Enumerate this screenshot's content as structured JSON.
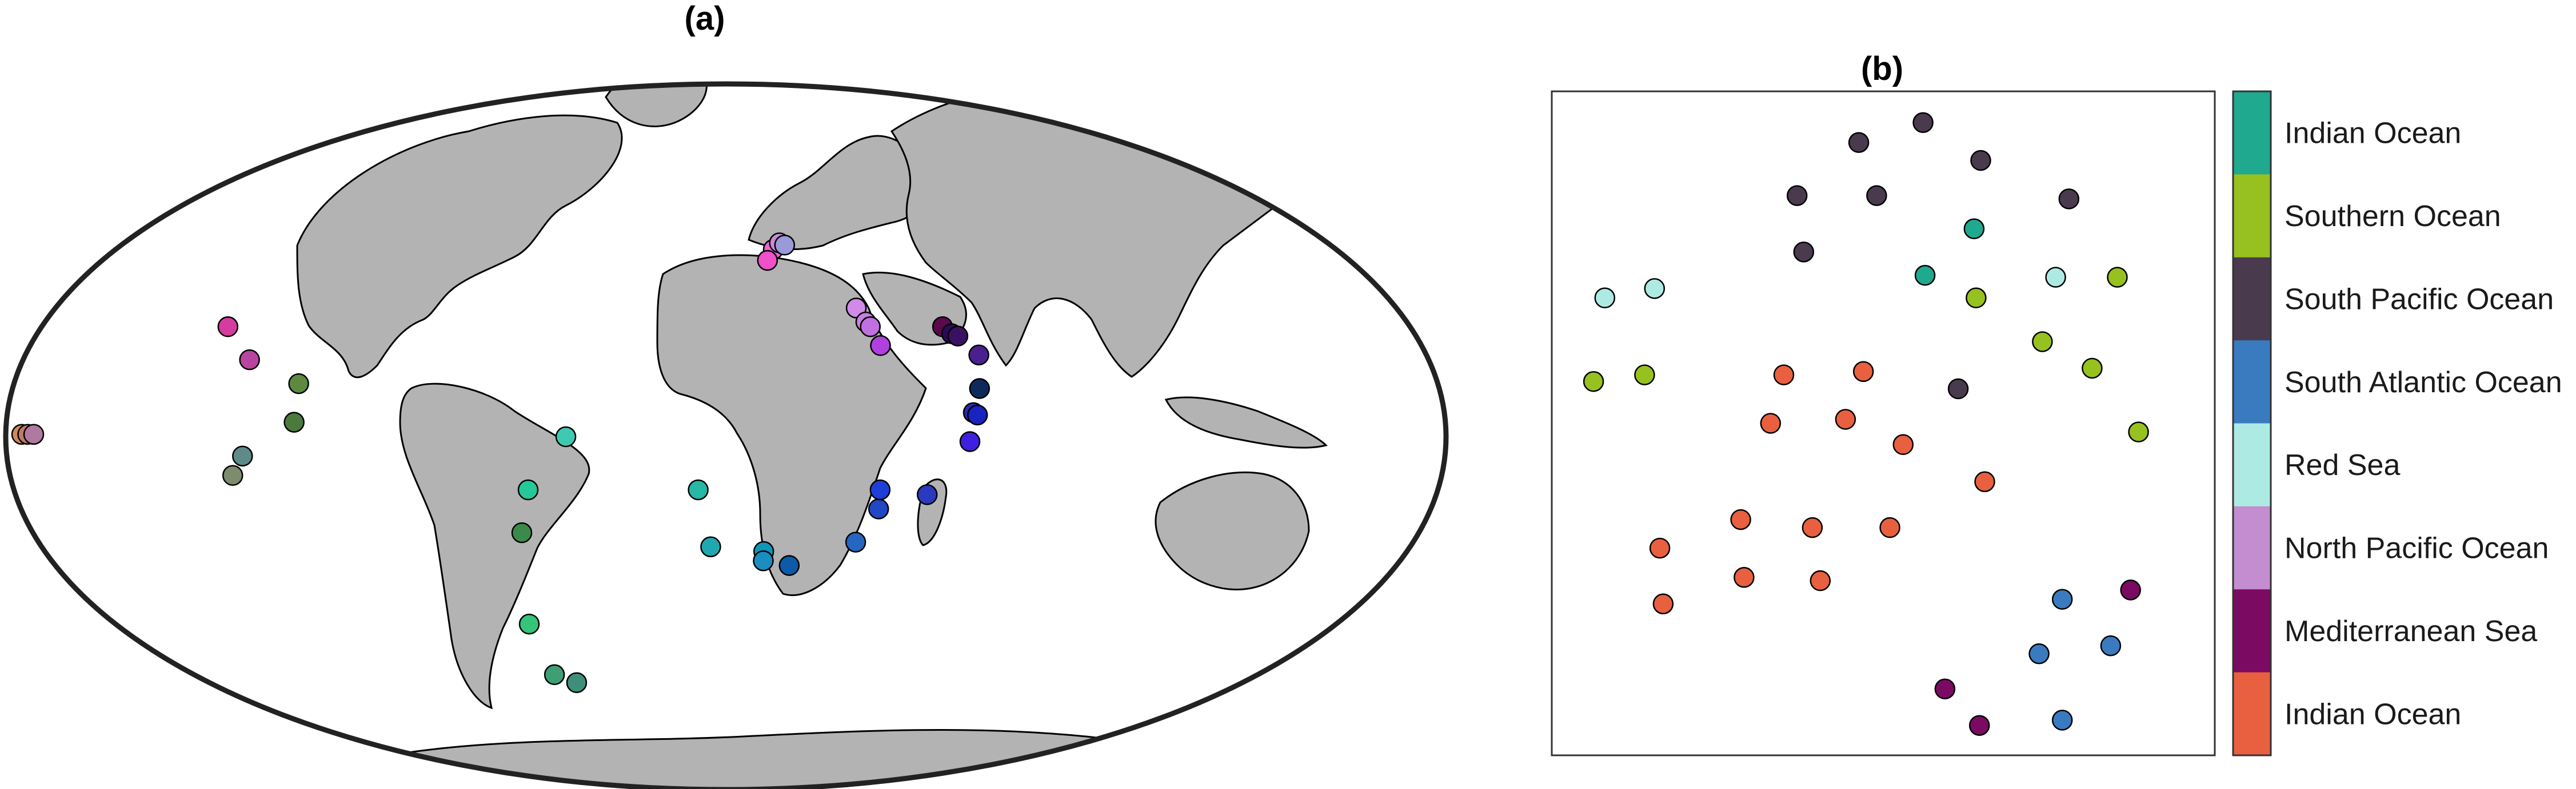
{
  "chart_data": [
    {
      "type": "scatter",
      "panel": "map",
      "title": "(a)",
      "projection": "mollweide",
      "land_color": "#b3b3b3",
      "points": [
        {
          "lon": -176,
          "lat": 0.5,
          "color": "#d08a5a"
        },
        {
          "lon": -174.5,
          "lat": 0.5,
          "color": "#c07a6a"
        },
        {
          "lon": -173,
          "lat": 0.5,
          "color": "#b07aa0"
        },
        {
          "lon": -131,
          "lat": 23,
          "color": "#d63c9f"
        },
        {
          "lon": -122,
          "lat": 16,
          "color": "#b8459f"
        },
        {
          "lon": -108,
          "lat": 11,
          "color": "#5e8a3f"
        },
        {
          "lon": -108,
          "lat": 3,
          "color": "#4c7a3c"
        },
        {
          "lon": -121,
          "lat": -4,
          "color": "#5e8a8a"
        },
        {
          "lon": -124,
          "lat": -8,
          "color": "#7d8b6e"
        },
        {
          "lon": -40,
          "lat": 0,
          "color": "#3fc8b2"
        },
        {
          "lon": -50,
          "lat": -11,
          "color": "#25c898"
        },
        {
          "lon": -53,
          "lat": -20,
          "color": "#3a8a4a"
        },
        {
          "lon": -58,
          "lat": -40,
          "color": "#34c47a"
        },
        {
          "lon": -58,
          "lat": -52,
          "color": "#3e9e74"
        },
        {
          "lon": -52,
          "lat": -54,
          "color": "#3f8e7c"
        },
        {
          "lon": -7,
          "lat": -11,
          "color": "#26b8a4"
        },
        {
          "lon": -4,
          "lat": -23,
          "color": "#20a8b0"
        },
        {
          "lon": 10,
          "lat": -24,
          "color": "#0f96b8"
        },
        {
          "lon": 10,
          "lat": -26,
          "color": "#1a8ec0"
        },
        {
          "lon": 17,
          "lat": -27,
          "color": "#0c5aa8"
        },
        {
          "lon": 34,
          "lat": -22,
          "color": "#2466c0"
        },
        {
          "lon": 39,
          "lat": -15,
          "color": "#2048c4"
        },
        {
          "lon": 39,
          "lat": -11,
          "color": "#1f3fd8"
        },
        {
          "lon": 51,
          "lat": -12,
          "color": "#2b38c0"
        },
        {
          "lon": 14,
          "lat": 40,
          "color": "#e864d2"
        },
        {
          "lon": 16,
          "lat": 41.5,
          "color": "#c88ad8"
        },
        {
          "lon": 17.5,
          "lat": 41,
          "color": "#9a9ad8"
        },
        {
          "lon": 12,
          "lat": 37.5,
          "color": "#f050c8"
        },
        {
          "lon": 35,
          "lat": 27,
          "color": "#d08ae8"
        },
        {
          "lon": 37,
          "lat": 24,
          "color": "#c880e0"
        },
        {
          "lon": 38,
          "lat": 23,
          "color": "#c070e0"
        },
        {
          "lon": 40,
          "lat": 19,
          "color": "#b040e0"
        },
        {
          "lon": 57,
          "lat": 23,
          "color": "#5a0a4a"
        },
        {
          "lon": 59,
          "lat": 21.5,
          "color": "#2a0a5a"
        },
        {
          "lon": 60.5,
          "lat": 21,
          "color": "#3a1060"
        },
        {
          "lon": 65,
          "lat": 17,
          "color": "#4a2090"
        },
        {
          "lon": 64,
          "lat": 10,
          "color": "#0d2a5a"
        },
        {
          "lon": 62,
          "lat": 5,
          "color": "#2a2ab0"
        },
        {
          "lon": 63,
          "lat": 4.5,
          "color": "#1a22c0"
        },
        {
          "lon": 61,
          "lat": -1,
          "color": "#4020e0"
        }
      ]
    },
    {
      "type": "scatter",
      "panel": "embedding",
      "title": "(b)",
      "xlim": [
        0,
        1
      ],
      "ylim": [
        0,
        1
      ],
      "categories": [
        {
          "label": "Indian Ocean",
          "color": "#1fa98f"
        },
        {
          "label": "Southern Ocean",
          "color": "#96c11f"
        },
        {
          "label": "South Pacific Ocean",
          "color": "#4a3a4e"
        },
        {
          "label": "South Atlantic Ocean",
          "color": "#3a7bc0"
        },
        {
          "label": "Red Sea",
          "color": "#aeeae4"
        },
        {
          "label": "North Pacific Ocean",
          "color": "#c38dcf"
        },
        {
          "label": "Mediterranean Sea",
          "color": "#7b0a63"
        },
        {
          "label": "Indian Ocean",
          "color": "#e8603f"
        }
      ],
      "points": [
        {
          "x": 0.463,
          "y": 0.923,
          "cat": 2
        },
        {
          "x": 0.56,
          "y": 0.953,
          "cat": 2
        },
        {
          "x": 0.647,
          "y": 0.896,
          "cat": 2
        },
        {
          "x": 0.37,
          "y": 0.843,
          "cat": 2
        },
        {
          "x": 0.49,
          "y": 0.843,
          "cat": 2
        },
        {
          "x": 0.78,
          "y": 0.838,
          "cat": 2
        },
        {
          "x": 0.38,
          "y": 0.758,
          "cat": 2
        },
        {
          "x": 0.613,
          "y": 0.552,
          "cat": 2
        },
        {
          "x": 0.637,
          "y": 0.793,
          "cat": 0
        },
        {
          "x": 0.563,
          "y": 0.723,
          "cat": 0
        },
        {
          "x": 0.08,
          "y": 0.689,
          "cat": 4
        },
        {
          "x": 0.155,
          "y": 0.703,
          "cat": 4
        },
        {
          "x": 0.76,
          "y": 0.72,
          "cat": 4
        },
        {
          "x": 0.64,
          "y": 0.689,
          "cat": 1
        },
        {
          "x": 0.853,
          "y": 0.72,
          "cat": 1
        },
        {
          "x": 0.74,
          "y": 0.623,
          "cat": 1
        },
        {
          "x": 0.815,
          "y": 0.583,
          "cat": 1
        },
        {
          "x": 0.063,
          "y": 0.563,
          "cat": 1
        },
        {
          "x": 0.14,
          "y": 0.573,
          "cat": 1
        },
        {
          "x": 0.885,
          "y": 0.487,
          "cat": 1
        },
        {
          "x": 0.35,
          "y": 0.573,
          "cat": 7
        },
        {
          "x": 0.47,
          "y": 0.578,
          "cat": 7
        },
        {
          "x": 0.33,
          "y": 0.5,
          "cat": 7
        },
        {
          "x": 0.443,
          "y": 0.506,
          "cat": 7
        },
        {
          "x": 0.53,
          "y": 0.468,
          "cat": 7
        },
        {
          "x": 0.653,
          "y": 0.412,
          "cat": 7
        },
        {
          "x": 0.285,
          "y": 0.355,
          "cat": 7
        },
        {
          "x": 0.393,
          "y": 0.343,
          "cat": 7
        },
        {
          "x": 0.51,
          "y": 0.343,
          "cat": 7
        },
        {
          "x": 0.163,
          "y": 0.312,
          "cat": 7
        },
        {
          "x": 0.29,
          "y": 0.268,
          "cat": 7
        },
        {
          "x": 0.405,
          "y": 0.263,
          "cat": 7
        },
        {
          "x": 0.168,
          "y": 0.228,
          "cat": 7
        },
        {
          "x": 0.77,
          "y": 0.235,
          "cat": 3
        },
        {
          "x": 0.735,
          "y": 0.153,
          "cat": 3
        },
        {
          "x": 0.843,
          "y": 0.165,
          "cat": 3
        },
        {
          "x": 0.77,
          "y": 0.053,
          "cat": 3
        },
        {
          "x": 0.873,
          "y": 0.249,
          "cat": 6
        },
        {
          "x": 0.593,
          "y": 0.1,
          "cat": 6
        },
        {
          "x": 0.645,
          "y": 0.045,
          "cat": 6
        }
      ]
    }
  ]
}
